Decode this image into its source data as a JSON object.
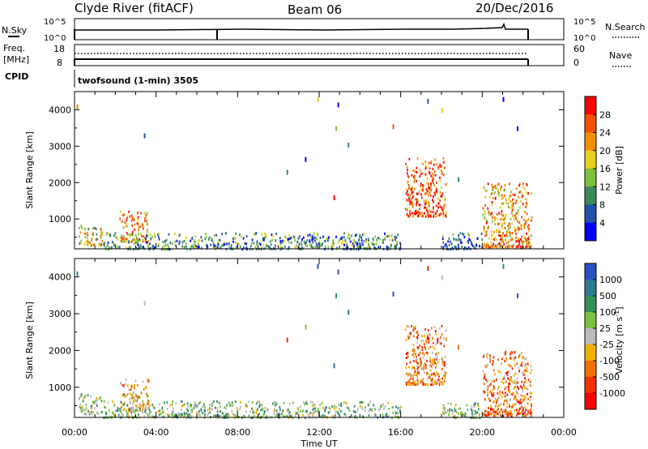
{
  "header": {
    "station": "Clyde River (fitACF)",
    "beam": "Beam 06",
    "date": "20/Dec/2016"
  },
  "nsky_panel": {
    "left_label": "N.Sky",
    "right_label": "N.Search",
    "left_ticks": [
      "10^5",
      "10^0"
    ],
    "right_ticks": [
      "10^5",
      "10^0"
    ]
  },
  "freq_panel": {
    "left_label_1": "Freq.",
    "left_label_2": "[MHz]",
    "right_label": "Nave",
    "left_ticks": [
      "18",
      "8"
    ],
    "right_ticks": [
      "60",
      "0"
    ]
  },
  "cpid_panel": {
    "label": "CPID",
    "program": "twofsound (1-min) 3505"
  },
  "colors": {
    "power_scale": [
      "#0000ff",
      "#1f52a6",
      "#3a8a5a",
      "#7dbf3e",
      "#e6d020",
      "#f09000",
      "#f05000",
      "#ff0000"
    ],
    "velocity_scale": [
      "#2a4fc0",
      "#2f7a8f",
      "#35905a",
      "#78c040",
      "#bbbbbb",
      "#f0b000",
      "#f07000",
      "#f03000",
      "#ff0000"
    ]
  },
  "chart_data": [
    {
      "type": "heatmap",
      "name": "power",
      "ylabel": "Slant Range [km]",
      "ylim": [
        180,
        4500
      ],
      "yticks": [
        1000,
        2000,
        3000,
        4000
      ],
      "x_range_hours": [
        0,
        24
      ],
      "colorbar_label": "Power [dB]",
      "colorbar_ticks": [
        "4",
        "8",
        "12",
        "16",
        "20",
        "24",
        "28"
      ],
      "colorbar_range": [
        0,
        32
      ],
      "echo_regions": [
        {
          "t0": 0.2,
          "t1": 1.4,
          "r0": 300,
          "r1": 850,
          "level": 4
        },
        {
          "t0": 2.2,
          "t1": 3.6,
          "r0": 400,
          "r1": 1250,
          "level": 5
        },
        {
          "t0": 1.4,
          "t1": 16.0,
          "r0": 200,
          "r1": 650,
          "level": 2
        },
        {
          "t0": 16.2,
          "t1": 18.2,
          "r0": 1100,
          "r1": 2700,
          "level": 6
        },
        {
          "t0": 18.0,
          "t1": 20.0,
          "r0": 200,
          "r1": 650,
          "level": 1
        },
        {
          "t0": 20.0,
          "t1": 22.4,
          "r0": 250,
          "r1": 2000,
          "level": 5
        }
      ],
      "isolated_points": [
        [
          0.1,
          4150
        ],
        [
          3.4,
          3350
        ],
        [
          11.9,
          4350
        ],
        [
          12.9,
          4200
        ],
        [
          12.8,
          3550
        ],
        [
          13.4,
          3100
        ],
        [
          15.6,
          3600
        ],
        [
          17.3,
          4300
        ],
        [
          18.0,
          4050
        ],
        [
          21.7,
          3550
        ],
        [
          10.4,
          2350
        ],
        [
          11.3,
          2700
        ],
        [
          12.7,
          1650
        ],
        [
          18.8,
          2150
        ],
        [
          21.0,
          4350
        ]
      ]
    },
    {
      "type": "heatmap",
      "name": "velocity",
      "ylabel": "Slant Range [km]",
      "xlabel": "Time UT",
      "ylim": [
        180,
        4500
      ],
      "yticks": [
        1000,
        2000,
        3000,
        4000
      ],
      "x_range_hours": [
        0,
        24
      ],
      "xticks": [
        "00:00",
        "04:00",
        "08:00",
        "12:00",
        "16:00",
        "20:00",
        "00:00"
      ],
      "colorbar_label": "Velocity [m s^-1]",
      "colorbar_ticks": [
        "1000",
        "500",
        "100",
        "25",
        "-25",
        "-100",
        "-500",
        "-1000"
      ],
      "colorbar_range": [
        -1500,
        1500
      ],
      "echo_regions": [
        {
          "t0": 0.2,
          "t1": 1.4,
          "r0": 300,
          "r1": 850,
          "level": 3
        },
        {
          "t0": 2.2,
          "t1": 3.6,
          "r0": 400,
          "r1": 1250,
          "level": 5
        },
        {
          "t0": 1.4,
          "t1": 16.0,
          "r0": 200,
          "r1": 650,
          "level": 3
        },
        {
          "t0": 16.2,
          "t1": 18.2,
          "r0": 1100,
          "r1": 2700,
          "level": 6
        },
        {
          "t0": 18.0,
          "t1": 20.0,
          "r0": 200,
          "r1": 650,
          "level": 3
        },
        {
          "t0": 20.0,
          "t1": 22.4,
          "r0": 250,
          "r1": 2000,
          "level": 6
        }
      ],
      "isolated_points": [
        [
          0.1,
          4150
        ],
        [
          3.4,
          3350
        ],
        [
          11.9,
          4350
        ],
        [
          12.9,
          4200
        ],
        [
          12.8,
          3550
        ],
        [
          13.4,
          3100
        ],
        [
          15.6,
          3600
        ],
        [
          17.3,
          4300
        ],
        [
          18.0,
          4050
        ],
        [
          21.7,
          3550
        ],
        [
          10.4,
          2350
        ],
        [
          11.3,
          2700
        ],
        [
          12.7,
          1650
        ],
        [
          18.8,
          2150
        ],
        [
          21.0,
          4350
        ]
      ]
    }
  ]
}
